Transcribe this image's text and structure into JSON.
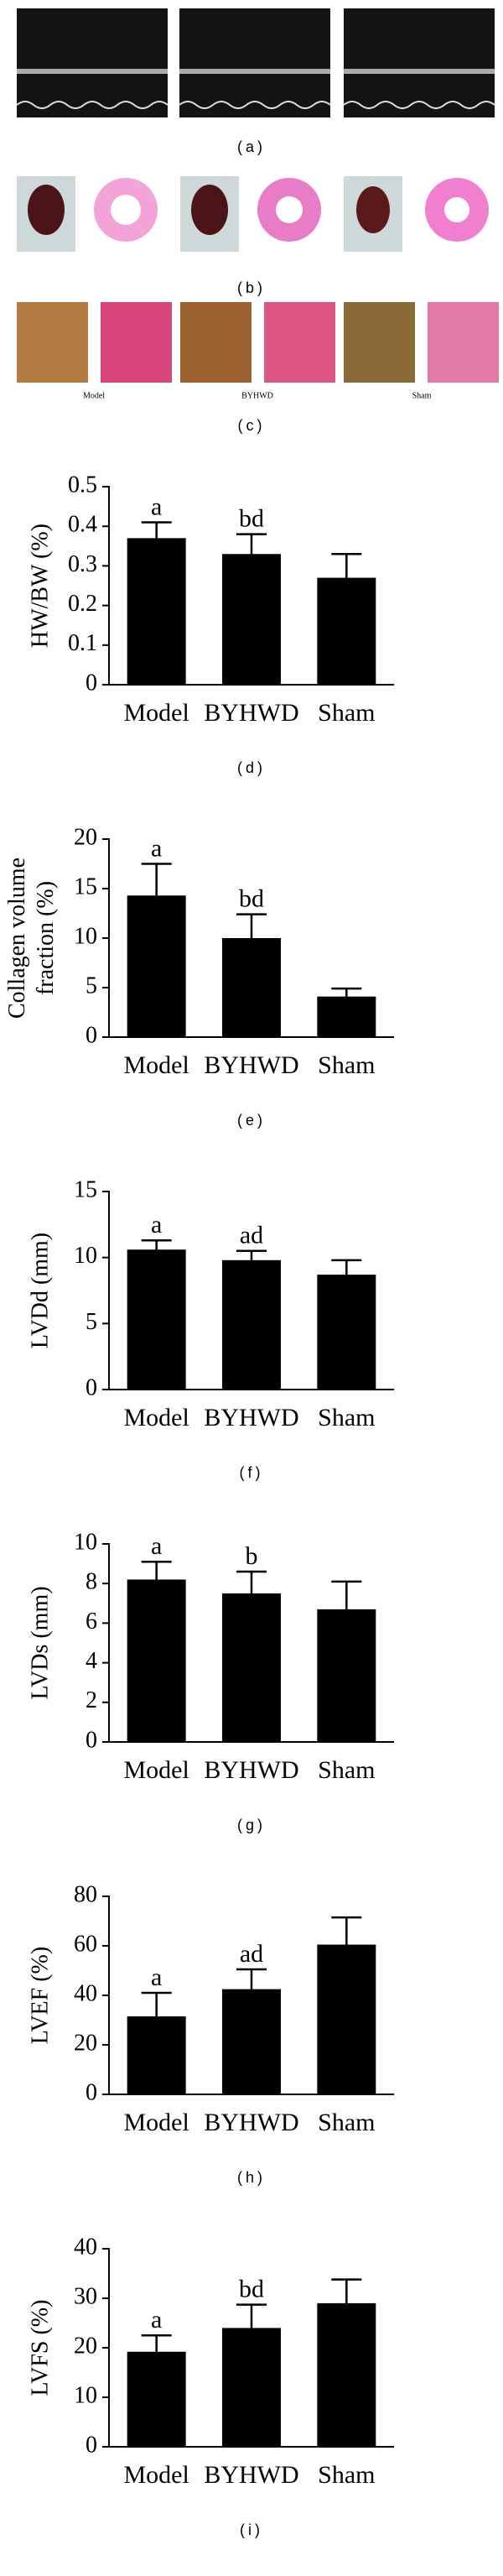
{
  "panels": {
    "a": {
      "label": "(a)"
    },
    "b": {
      "label": "(b)"
    },
    "c": {
      "label": "(c)",
      "captions": [
        "Model",
        "BYHWD",
        "Sham"
      ]
    }
  },
  "chart_data": [
    {
      "type": "bar",
      "panel_label": "(d)",
      "ylabel": "HW/BW (%)",
      "categories": [
        "Model",
        "BYHWD",
        "Sham"
      ],
      "values": [
        0.37,
        0.33,
        0.27
      ],
      "errors": [
        0.04,
        0.05,
        0.06
      ],
      "annotations": [
        "a",
        "bd",
        null
      ],
      "color": "#000000",
      "ylim": [
        0,
        0.5
      ],
      "yticks": [
        0,
        0.1,
        0.2,
        0.3,
        0.4,
        0.5
      ]
    },
    {
      "type": "bar",
      "panel_label": "(e)",
      "ylabel": [
        "Collagen volume",
        "fraction (%)"
      ],
      "categories": [
        "Model",
        "BYHWD",
        "Sham"
      ],
      "values": [
        14.3,
        10,
        4.1
      ],
      "errors": [
        3.2,
        2.4,
        0.8
      ],
      "annotations": [
        "a",
        "bd",
        null
      ],
      "color": "#000000",
      "ylim": [
        0,
        20
      ],
      "yticks": [
        0,
        5,
        10,
        15,
        20
      ]
    },
    {
      "type": "bar",
      "panel_label": "(f)",
      "ylabel": "LVDd (mm)",
      "categories": [
        "Model",
        "BYHWD",
        "Sham"
      ],
      "values": [
        10.6,
        9.8,
        8.7
      ],
      "errors": [
        0.7,
        0.7,
        1.1
      ],
      "annotations": [
        "a",
        "ad",
        null
      ],
      "color": "#000000",
      "ylim": [
        0,
        15
      ],
      "yticks": [
        0,
        5,
        10,
        15
      ]
    },
    {
      "type": "bar",
      "panel_label": "(g)",
      "ylabel": "LVDs (mm)",
      "categories": [
        "Model",
        "BYHWD",
        "Sham"
      ],
      "values": [
        8.2,
        7.5,
        6.7
      ],
      "errors": [
        0.9,
        1.1,
        1.4
      ],
      "annotations": [
        "a",
        "b",
        null
      ],
      "color": "#000000",
      "ylim": [
        0,
        10
      ],
      "yticks": [
        0,
        2,
        4,
        6,
        8,
        10
      ]
    },
    {
      "type": "bar",
      "panel_label": "(h)",
      "ylabel": "LVEF (%)",
      "categories": [
        "Model",
        "BYHWD",
        "Sham"
      ],
      "values": [
        31.5,
        42.5,
        60.5
      ],
      "errors": [
        9.5,
        8,
        11
      ],
      "annotations": [
        "a",
        "ad",
        null
      ],
      "color": "#000000",
      "ylim": [
        0,
        80
      ],
      "yticks": [
        0,
        20,
        40,
        60,
        80
      ]
    },
    {
      "type": "bar",
      "panel_label": "(i)",
      "ylabel": "LVFS (%)",
      "categories": [
        "Model",
        "BYHWD",
        "Sham"
      ],
      "values": [
        19.2,
        24,
        29
      ],
      "errors": [
        3.3,
        4.7,
        4.8
      ],
      "annotations": [
        "a",
        "bd",
        null
      ],
      "color": "#000000",
      "ylim": [
        0,
        40
      ],
      "yticks": [
        0,
        10,
        20,
        30,
        40
      ]
    }
  ]
}
